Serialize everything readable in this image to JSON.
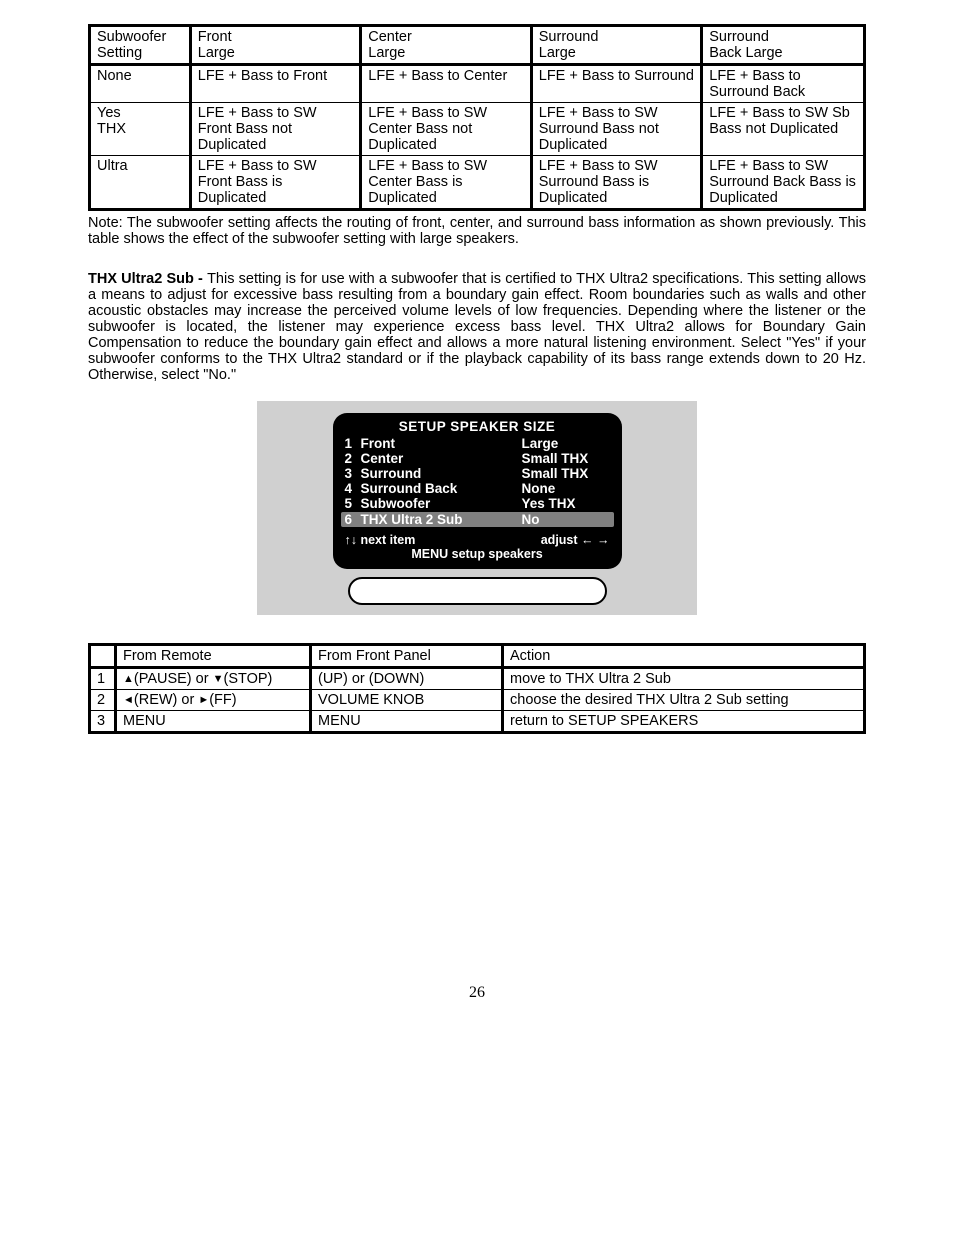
{
  "table1": {
    "headers": [
      "Subwoofer Setting",
      "Front\nLarge",
      "Center\nLarge",
      "Surround\nLarge",
      "Surround\nBack Large"
    ],
    "rows": [
      {
        "setting": "None",
        "cells": [
          "LFE + Bass to Front",
          "LFE + Bass to Center",
          "LFE + Bass to Surround",
          "LFE + Bass to Surround Back"
        ]
      },
      {
        "setting": "Yes\nTHX",
        "cells": [
          "LFE + Bass to SW Front Bass not Duplicated",
          "LFE + Bass to SW Center Bass not Duplicated",
          "LFE + Bass to SW Surround Bass not Duplicated",
          "LFE + Bass to SW Sb Bass not Duplicated"
        ]
      },
      {
        "setting": "Ultra",
        "cells": [
          "LFE + Bass to SW Front Bass is Duplicated",
          "LFE + Bass to SW Center Bass is Duplicated",
          "LFE + Bass to SW Surround Bass is Duplicated",
          "LFE + Bass to SW Surround Back Bass is Duplicated"
        ]
      }
    ],
    "col_widths_pct": [
      13,
      22,
      22,
      22,
      21
    ]
  },
  "note_text": "Note: The subwoofer setting affects the routing of front, center, and surround bass information as shown previously. This table shows the effect of the subwoofer setting with large speakers.",
  "section": {
    "heading": "THX Ultra2 Sub - ",
    "body": "This setting is for use with a subwoofer that is certified to THX Ultra2 specifications. This setting allows a means to adjust for excessive bass resulting from a boundary gain effect. Room boundaries such as walls and other acoustic obstacles may increase the perceived volume levels of low frequencies. Depending where the listener or the subwoofer is located, the listener may experience excess bass level. THX Ultra2 allows for Boundary Gain Compensation to reduce the boundary gain effect and allows a more natural listening environment. Select \"Yes\" if your subwoofer conforms to the THX Ultra2 standard or if the playback capability of its bass range extends down to 20 Hz. Otherwise, select \"No.\""
  },
  "osd": {
    "title": "SETUP SPEAKER SIZE",
    "items": [
      {
        "n": "1",
        "label": "Front",
        "value": "Large"
      },
      {
        "n": "2",
        "label": "Center",
        "value": "Small THX"
      },
      {
        "n": "3",
        "label": "Surround",
        "value": "Small THX"
      },
      {
        "n": "4",
        "label": "Surround Back",
        "value": "None"
      },
      {
        "n": "5",
        "label": "Subwoofer",
        "value": "Yes   THX"
      },
      {
        "n": "6",
        "label": "THX Ultra 2 Sub",
        "value": "No",
        "highlight": true
      }
    ],
    "hint_left": "↑↓ next item",
    "hint_right": "adjust   ← →",
    "menu_line": "MENU setup speakers"
  },
  "steps": {
    "headers": [
      "",
      "From Remote",
      "From Front Panel",
      "Action"
    ],
    "rows": [
      {
        "n": "1",
        "remote_pre": "▲",
        "remote_mid1": "(PAUSE) or ",
        "remote_tri2": "▼",
        "remote_post": "(STOP)",
        "panel": "(UP) or (DOWN)",
        "action": "move to THX Ultra 2 Sub"
      },
      {
        "n": "2",
        "remote_pre": "◄",
        "remote_mid1": "(REW) or ",
        "remote_tri2": "►",
        "remote_post": "(FF)",
        "panel": "VOLUME KNOB",
        "action": "choose the desired THX Ultra 2 Sub setting"
      },
      {
        "n": "3",
        "remote_plain": "MENU",
        "panel": "MENU",
        "action": "return to SETUP SPEAKERS"
      }
    ]
  },
  "page_number": "26",
  "colors": {
    "osd_bg": "#000000",
    "osd_fg": "#ffffff",
    "osd_wrap_bg": "#d0d0d0",
    "osd_highlight": "#808080",
    "border": "#000000",
    "page_bg": "#ffffff"
  }
}
